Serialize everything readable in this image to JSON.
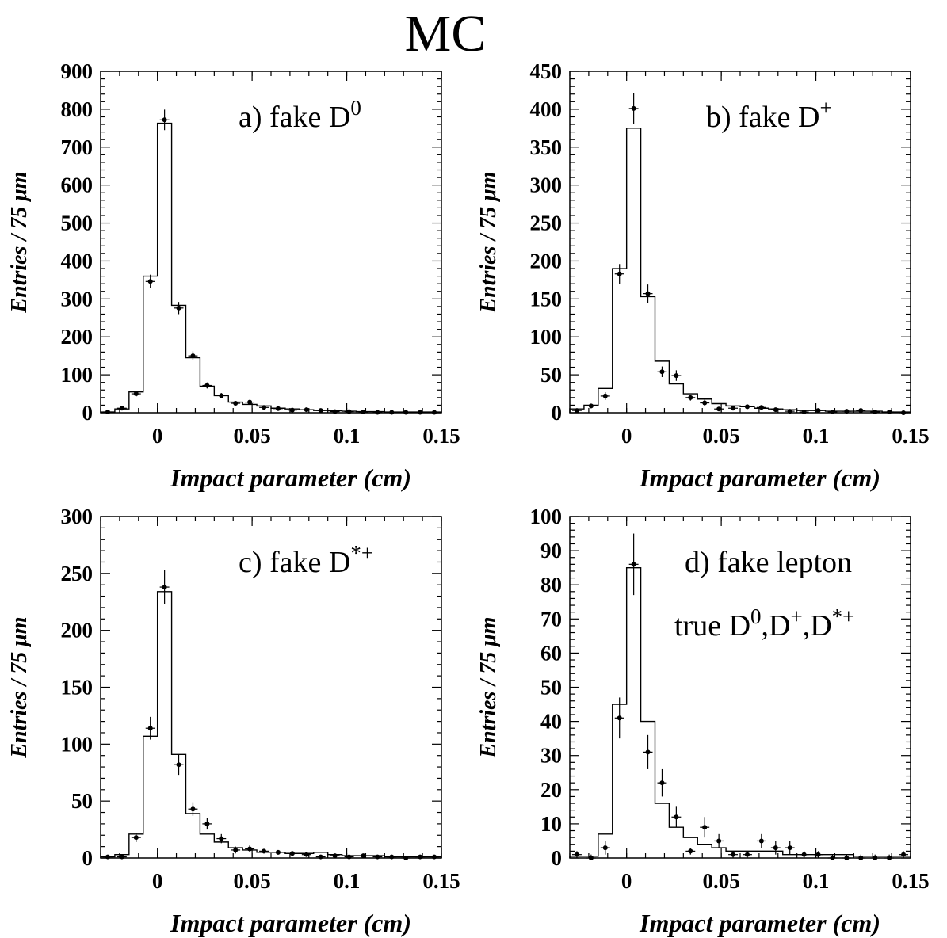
{
  "figure": {
    "title": "MC"
  },
  "chart_data": [
    {
      "id": "a",
      "type": "bar",
      "label": "a) fake D",
      "label_sup": "0",
      "ylabel": "Entries / 75 μm",
      "xlabel": "Impact parameter (cm)",
      "xlim": [
        -0.03,
        0.15
      ],
      "ylim": [
        0,
        900
      ],
      "xticks": [
        0,
        0.05,
        0.1,
        0.15
      ],
      "xtick_labels": [
        "0",
        "0.05",
        "0.1",
        "0.15"
      ],
      "yticks": [
        0,
        100,
        200,
        300,
        400,
        500,
        600,
        700,
        800,
        900
      ],
      "ytick_labels": [
        "0",
        "100",
        "200",
        "300",
        "400",
        "500",
        "600",
        "700",
        "800",
        "900"
      ],
      "bin_edges": [
        -0.03,
        -0.0225,
        -0.015,
        -0.0075,
        0,
        0.0075,
        0.015,
        0.0225,
        0.03,
        0.0375,
        0.045,
        0.0525,
        0.06,
        0.0675,
        0.075,
        0.0825,
        0.09,
        0.0975,
        0.105,
        0.1125,
        0.12,
        0.1275,
        0.135,
        0.1425,
        0.15
      ],
      "series": [
        {
          "kind": "histogram",
          "values": [
            2,
            10,
            55,
            360,
            763,
            283,
            145,
            70,
            45,
            28,
            22,
            18,
            12,
            10,
            8,
            6,
            5,
            4,
            3,
            3,
            2,
            2,
            2,
            2
          ]
        },
        {
          "kind": "points",
          "values": [
            2,
            12,
            50,
            346,
            772,
            276,
            150,
            72,
            45,
            25,
            28,
            14,
            11,
            7,
            8,
            6,
            3,
            3,
            2,
            1,
            1,
            1,
            1,
            1
          ],
          "errors": [
            2,
            4,
            7,
            18,
            27,
            16,
            12,
            8,
            7,
            5,
            5,
            4,
            3,
            3,
            3,
            2,
            2,
            2,
            1,
            1,
            1,
            1,
            1,
            1
          ]
        }
      ]
    },
    {
      "id": "b",
      "type": "bar",
      "label": "b) fake D",
      "label_sup": "+",
      "ylabel": "Entries / 75 μm",
      "xlabel": "Impact parameter (cm)",
      "xlim": [
        -0.03,
        0.15
      ],
      "ylim": [
        0,
        450
      ],
      "xticks": [
        0,
        0.05,
        0.1,
        0.15
      ],
      "xtick_labels": [
        "0",
        "0.05",
        "0.1",
        "0.15"
      ],
      "yticks": [
        0,
        50,
        100,
        150,
        200,
        250,
        300,
        350,
        400,
        450
      ],
      "ytick_labels": [
        "0",
        "50",
        "100",
        "150",
        "200",
        "250",
        "300",
        "350",
        "400",
        "450"
      ],
      "bin_edges": [
        -0.03,
        -0.0225,
        -0.015,
        -0.0075,
        0,
        0.0075,
        0.015,
        0.0225,
        0.03,
        0.0375,
        0.045,
        0.0525,
        0.06,
        0.0675,
        0.075,
        0.0825,
        0.09,
        0.0975,
        0.105,
        0.1125,
        0.12,
        0.1275,
        0.135,
        0.1425,
        0.15
      ],
      "series": [
        {
          "kind": "histogram",
          "values": [
            5,
            10,
            32,
            190,
            375,
            153,
            68,
            38,
            25,
            18,
            12,
            9,
            8,
            6,
            5,
            4,
            3,
            3,
            2,
            2,
            2,
            2,
            1,
            1
          ]
        },
        {
          "kind": "points",
          "values": [
            3,
            9,
            22,
            183,
            401,
            157,
            54,
            49,
            20,
            13,
            5,
            6,
            8,
            7,
            4,
            2,
            1,
            3,
            1,
            2,
            3,
            1,
            1,
            0
          ],
          "errors": [
            2,
            3,
            5,
            13,
            20,
            12,
            7,
            7,
            4,
            4,
            2,
            2,
            3,
            3,
            2,
            1,
            1,
            2,
            1,
            1,
            2,
            1,
            1,
            1
          ]
        }
      ]
    },
    {
      "id": "c",
      "type": "bar",
      "label": "c) fake D",
      "label_sup": "*+",
      "ylabel": "Entries / 75 μm",
      "xlabel": "Impact parameter (cm)",
      "xlim": [
        -0.03,
        0.15
      ],
      "ylim": [
        0,
        300
      ],
      "xticks": [
        0,
        0.05,
        0.1,
        0.15
      ],
      "xtick_labels": [
        "0",
        "0.05",
        "0.1",
        "0.15"
      ],
      "yticks": [
        0,
        50,
        100,
        150,
        200,
        250,
        300
      ],
      "ytick_labels": [
        "0",
        "50",
        "100",
        "150",
        "200",
        "250",
        "300"
      ],
      "bin_edges": [
        -0.03,
        -0.0225,
        -0.015,
        -0.0075,
        0,
        0.0075,
        0.015,
        0.0225,
        0.03,
        0.0375,
        0.045,
        0.0525,
        0.06,
        0.0675,
        0.075,
        0.0825,
        0.09,
        0.0975,
        0.105,
        0.1125,
        0.12,
        0.1275,
        0.135,
        0.1425,
        0.15
      ],
      "series": [
        {
          "kind": "histogram",
          "values": [
            1,
            3,
            21,
            107,
            234,
            91,
            39,
            21,
            14,
            9,
            7,
            5,
            5,
            4,
            4,
            5,
            3,
            2,
            2,
            2,
            1,
            1,
            1,
            1
          ]
        },
        {
          "kind": "points",
          "values": [
            1,
            1,
            18,
            114,
            238,
            82,
            43,
            30,
            17,
            7,
            8,
            6,
            5,
            4,
            3,
            1,
            2,
            1,
            2,
            1,
            1,
            0,
            1,
            1
          ],
          "errors": [
            1,
            1,
            4,
            10,
            15,
            9,
            6,
            5,
            4,
            3,
            3,
            2,
            2,
            2,
            2,
            1,
            1,
            1,
            1,
            1,
            1,
            1,
            1,
            1
          ]
        }
      ]
    },
    {
      "id": "d",
      "type": "bar",
      "label": "d) fake lepton",
      "label_line2": "true  D",
      "label_line2_sup": "0",
      "label_line2_mid1": ",D",
      "label_line2_sup2": "+",
      "label_line2_mid2": ",D",
      "label_line2_sup3": "*+",
      "ylabel": "Entries / 75 μm",
      "xlabel": "Impact parameter (cm)",
      "xlim": [
        -0.03,
        0.15
      ],
      "ylim": [
        0,
        100
      ],
      "xticks": [
        0,
        0.05,
        0.1,
        0.15
      ],
      "xtick_labels": [
        "0",
        "0.05",
        "0.1",
        "0.15"
      ],
      "yticks": [
        0,
        10,
        20,
        30,
        40,
        50,
        60,
        70,
        80,
        90,
        100
      ],
      "ytick_labels": [
        "0",
        "10",
        "20",
        "30",
        "40",
        "50",
        "60",
        "70",
        "80",
        "90",
        "100"
      ],
      "bin_edges": [
        -0.03,
        -0.0225,
        -0.015,
        -0.0075,
        0,
        0.0075,
        0.015,
        0.0225,
        0.03,
        0.0375,
        0.045,
        0.0525,
        0.06,
        0.0675,
        0.075,
        0.0825,
        0.09,
        0.0975,
        0.105,
        0.1125,
        0.12,
        0.1275,
        0.135,
        0.1425,
        0.15
      ],
      "series": [
        {
          "kind": "histogram",
          "values": [
            0.5,
            0.5,
            7,
            45,
            85,
            40,
            16,
            9,
            6,
            4,
            3,
            2,
            2,
            2,
            2,
            1,
            1,
            1,
            1,
            1,
            0.5,
            0.5,
            0.5,
            0.5
          ]
        },
        {
          "kind": "points",
          "values": [
            1,
            0,
            3,
            41,
            86,
            31,
            22,
            12,
            2,
            9,
            5,
            1,
            1,
            5,
            3,
            3,
            1,
            1,
            0,
            0,
            0,
            0,
            0,
            1
          ],
          "errors": [
            1,
            1,
            2,
            6,
            9,
            5,
            4,
            3,
            1,
            3,
            2,
            1,
            1,
            2,
            2,
            2,
            1,
            1,
            1,
            1,
            1,
            1,
            1,
            1
          ]
        }
      ]
    }
  ]
}
